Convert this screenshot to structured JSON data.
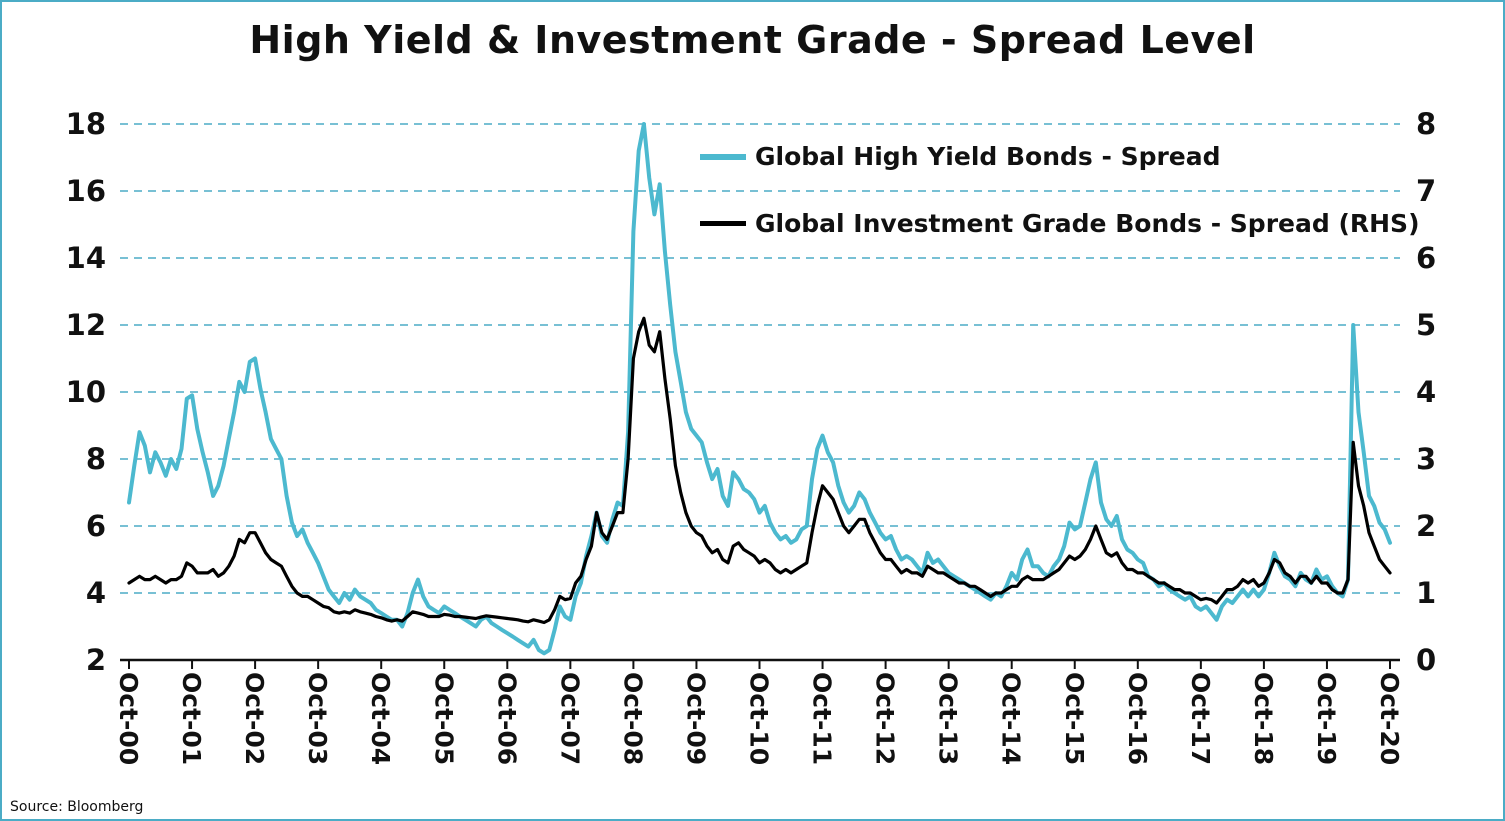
{
  "chart": {
    "title": "High Yield & Investment Grade - Spread Level",
    "source": "Source: Bloomberg",
    "legend": [
      {
        "label": "Global High Yield Bonds - Spread",
        "color": "#4CB9CF"
      },
      {
        "label": "Global Investment Grade Bonds - Spread (RHS)",
        "color": "#000000"
      }
    ]
  },
  "chart_data": {
    "type": "line",
    "title": "High Yield & Investment Grade - Spread Level",
    "x_unit": "monthly observations",
    "x_range": [
      "Oct-2000",
      "Oct-2020"
    ],
    "x_tick_labels": [
      "Oct-00",
      "Oct-01",
      "Oct-02",
      "Oct-03",
      "Oct-04",
      "Oct-05",
      "Oct-06",
      "Oct-07",
      "Oct-08",
      "Oct-09",
      "Oct-10",
      "Oct-11",
      "Oct-12",
      "Oct-13",
      "Oct-14",
      "Oct-15",
      "Oct-16",
      "Oct-17",
      "Oct-18",
      "Oct-19",
      "Oct-20"
    ],
    "left_axis": {
      "min": 2,
      "max": 18,
      "ticks": [
        2,
        4,
        6,
        8,
        10,
        12,
        14,
        16,
        18
      ]
    },
    "right_axis": {
      "min": 0,
      "max": 8,
      "ticks": [
        0,
        1,
        2,
        3,
        4,
        5,
        6,
        7,
        8
      ]
    },
    "grid": {
      "show": true,
      "style": "dashed",
      "color": "#4BACC6"
    },
    "legend_position": "inside-top-right",
    "series": [
      {
        "name": "Global High Yield Bonds - Spread",
        "axis": "left",
        "color": "#4CB9CF",
        "values": [
          6.7,
          7.8,
          8.8,
          8.4,
          7.6,
          8.2,
          7.9,
          7.5,
          8.0,
          7.7,
          8.3,
          9.8,
          9.9,
          8.9,
          8.2,
          7.6,
          6.9,
          7.2,
          7.8,
          8.6,
          9.4,
          10.3,
          10.0,
          10.9,
          11.0,
          10.1,
          9.4,
          8.6,
          8.3,
          8.0,
          6.9,
          6.1,
          5.7,
          5.9,
          5.5,
          5.2,
          4.9,
          4.5,
          4.1,
          3.9,
          3.7,
          4.0,
          3.8,
          4.1,
          3.9,
          3.8,
          3.7,
          3.5,
          3.4,
          3.3,
          3.2,
          3.2,
          3.0,
          3.4,
          4.0,
          4.4,
          3.9,
          3.6,
          3.5,
          3.4,
          3.6,
          3.5,
          3.4,
          3.3,
          3.2,
          3.1,
          3.0,
          3.2,
          3.3,
          3.1,
          3.0,
          2.9,
          2.8,
          2.7,
          2.6,
          2.5,
          2.4,
          2.6,
          2.3,
          2.2,
          2.3,
          2.9,
          3.6,
          3.3,
          3.2,
          3.9,
          4.3,
          5.1,
          5.7,
          6.4,
          5.7,
          5.5,
          6.2,
          6.7,
          6.6,
          8.8,
          14.8,
          17.2,
          18.0,
          16.4,
          15.3,
          16.2,
          14.2,
          12.6,
          11.2,
          10.3,
          9.4,
          8.9,
          8.7,
          8.5,
          7.9,
          7.4,
          7.7,
          6.9,
          6.6,
          7.6,
          7.4,
          7.1,
          7.0,
          6.8,
          6.4,
          6.6,
          6.1,
          5.8,
          5.6,
          5.7,
          5.5,
          5.6,
          5.9,
          6.0,
          7.4,
          8.3,
          8.7,
          8.2,
          7.9,
          7.2,
          6.7,
          6.4,
          6.6,
          7.0,
          6.8,
          6.4,
          6.1,
          5.8,
          5.6,
          5.7,
          5.3,
          5.0,
          5.1,
          5.0,
          4.8,
          4.6,
          5.2,
          4.9,
          5.0,
          4.8,
          4.6,
          4.5,
          4.4,
          4.3,
          4.2,
          4.1,
          4.0,
          3.9,
          3.8,
          4.0,
          3.9,
          4.2,
          4.6,
          4.4,
          5.0,
          5.3,
          4.8,
          4.8,
          4.6,
          4.5,
          4.8,
          5.0,
          5.4,
          6.1,
          5.9,
          6.0,
          6.7,
          7.4,
          7.9,
          6.7,
          6.2,
          6.0,
          6.3,
          5.6,
          5.3,
          5.2,
          5.0,
          4.9,
          4.5,
          4.4,
          4.2,
          4.3,
          4.1,
          4.0,
          3.9,
          3.8,
          3.9,
          3.6,
          3.5,
          3.6,
          3.4,
          3.2,
          3.6,
          3.8,
          3.7,
          3.9,
          4.1,
          3.9,
          4.1,
          3.9,
          4.1,
          4.6,
          5.2,
          4.8,
          4.5,
          4.4,
          4.2,
          4.6,
          4.4,
          4.3,
          4.7,
          4.4,
          4.5,
          4.2,
          4.0,
          3.9,
          4.4,
          12.0,
          9.4,
          8.2,
          6.9,
          6.6,
          6.1,
          5.9,
          5.5
        ]
      },
      {
        "name": "Global Investment Grade Bonds - Spread (RHS)",
        "axis": "right",
        "color": "#000000",
        "values": [
          1.15,
          1.2,
          1.25,
          1.2,
          1.2,
          1.25,
          1.2,
          1.15,
          1.2,
          1.2,
          1.25,
          1.45,
          1.4,
          1.3,
          1.3,
          1.3,
          1.35,
          1.25,
          1.3,
          1.4,
          1.55,
          1.8,
          1.75,
          1.9,
          1.9,
          1.75,
          1.6,
          1.5,
          1.45,
          1.4,
          1.25,
          1.1,
          1.0,
          0.95,
          0.95,
          0.9,
          0.85,
          0.8,
          0.78,
          0.72,
          0.7,
          0.72,
          0.7,
          0.75,
          0.72,
          0.7,
          0.68,
          0.65,
          0.63,
          0.6,
          0.58,
          0.6,
          0.58,
          0.65,
          0.72,
          0.7,
          0.68,
          0.65,
          0.65,
          0.65,
          0.68,
          0.67,
          0.65,
          0.65,
          0.64,
          0.63,
          0.62,
          0.64,
          0.66,
          0.65,
          0.64,
          0.63,
          0.62,
          0.61,
          0.6,
          0.58,
          0.57,
          0.6,
          0.58,
          0.56,
          0.6,
          0.75,
          0.95,
          0.9,
          0.92,
          1.15,
          1.25,
          1.5,
          1.7,
          2.2,
          1.9,
          1.8,
          2.0,
          2.2,
          2.2,
          3.0,
          4.5,
          4.9,
          5.1,
          4.7,
          4.6,
          4.9,
          4.2,
          3.6,
          2.9,
          2.5,
          2.2,
          2.0,
          1.9,
          1.85,
          1.7,
          1.6,
          1.65,
          1.5,
          1.45,
          1.7,
          1.75,
          1.65,
          1.6,
          1.55,
          1.45,
          1.5,
          1.45,
          1.35,
          1.3,
          1.35,
          1.3,
          1.35,
          1.4,
          1.45,
          1.9,
          2.3,
          2.6,
          2.5,
          2.4,
          2.2,
          2.0,
          1.9,
          2.0,
          2.1,
          2.1,
          1.9,
          1.75,
          1.6,
          1.5,
          1.5,
          1.4,
          1.3,
          1.35,
          1.3,
          1.3,
          1.25,
          1.4,
          1.35,
          1.3,
          1.3,
          1.25,
          1.2,
          1.15,
          1.15,
          1.1,
          1.1,
          1.05,
          1.0,
          0.95,
          1.0,
          1.0,
          1.05,
          1.1,
          1.1,
          1.2,
          1.25,
          1.2,
          1.2,
          1.2,
          1.25,
          1.3,
          1.35,
          1.45,
          1.55,
          1.5,
          1.55,
          1.65,
          1.8,
          2.0,
          1.8,
          1.6,
          1.55,
          1.6,
          1.45,
          1.35,
          1.35,
          1.3,
          1.3,
          1.25,
          1.2,
          1.15,
          1.15,
          1.1,
          1.05,
          1.05,
          1.0,
          1.0,
          0.95,
          0.9,
          0.92,
          0.9,
          0.85,
          0.95,
          1.05,
          1.05,
          1.1,
          1.2,
          1.15,
          1.2,
          1.1,
          1.15,
          1.3,
          1.5,
          1.45,
          1.3,
          1.25,
          1.15,
          1.25,
          1.25,
          1.15,
          1.25,
          1.15,
          1.15,
          1.05,
          1.0,
          1.0,
          1.2,
          3.25,
          2.6,
          2.3,
          1.9,
          1.7,
          1.5,
          1.4,
          1.3
        ]
      }
    ]
  }
}
